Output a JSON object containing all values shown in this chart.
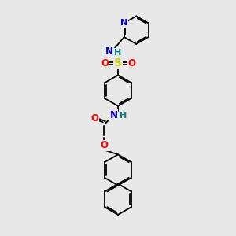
{
  "bg": "#e8e8e8",
  "lc": "#000000",
  "ac": {
    "N": "#0000cc",
    "O": "#ff0000",
    "S": "#cccc00",
    "H": "#008080"
  },
  "figsize": [
    3.0,
    3.0
  ],
  "dpi": 100,
  "xlim": [
    0.5,
    5.5
  ],
  "ylim": [
    -0.2,
    10.8
  ]
}
